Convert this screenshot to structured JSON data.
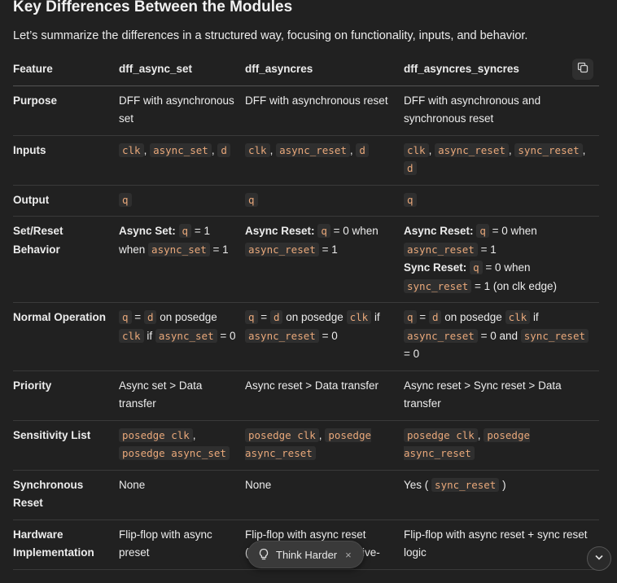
{
  "heading": "Key Differences Between the Modules",
  "intro": "Let’s summarize the differences in a structured way, focusing on functionality, inputs, and behavior.",
  "table": {
    "headers": [
      "Feature",
      "dff_async_set",
      "dff_asyncres",
      "dff_asyncres_syncres"
    ],
    "rows": [
      {
        "feature": "Purpose",
        "cells": [
          "DFF with asynchronous set",
          "DFF with asynchronous reset",
          "DFF with asynchronous and synchronous reset"
        ]
      },
      {
        "feature": "Inputs",
        "cells": [
          {
            "codes": [
              "clk",
              "async_set",
              "d"
            ]
          },
          {
            "codes": [
              "clk",
              "async_reset",
              "d"
            ]
          },
          {
            "codes": [
              "clk",
              "async_reset",
              "sync_reset",
              "d"
            ]
          }
        ]
      },
      {
        "feature": "Output",
        "cells": [
          "q",
          "q",
          "q"
        ]
      },
      {
        "feature": "Set/Reset Behavior",
        "cells": [
          {
            "label": "Async Set:",
            "q": "q",
            "eq": "= 1 when",
            "sig": "async_set",
            "tail": "= 1"
          },
          {
            "label": "Async Reset:",
            "q": "q",
            "eq": "= 0 when",
            "sig": "async_reset",
            "tail": "= 1"
          },
          {
            "label": "Async Reset:",
            "q": "q",
            "eq": "= 0 when",
            "sig": "async_reset",
            "tail": "= 1",
            "label2": "Sync Reset:",
            "q2": "q",
            "eq2": "= 0 when",
            "sig2": "sync_reset",
            "tail2": "= 1 (on clk edge)"
          }
        ]
      },
      {
        "feature": "Normal Operation",
        "cells": [
          {
            "q": "q",
            "eq": "=",
            "d": "d",
            "mid": "on posedge",
            "clk": "clk",
            "if": "if",
            "sig": "async_set",
            "tail": "= 0"
          },
          {
            "q": "q",
            "eq": "=",
            "d": "d",
            "mid": "on posedge",
            "clk": "clk",
            "if": "if",
            "sig": "async_reset",
            "tail": "= 0"
          },
          {
            "q": "q",
            "eq": "=",
            "d": "d",
            "mid": "on posedge",
            "clk": "clk",
            "if": "if",
            "sig": "async_reset",
            "and": "= 0 and",
            "sig2": "sync_reset",
            "tail": "= 0"
          }
        ]
      },
      {
        "feature": "Priority",
        "cells": [
          "Async set > Data transfer",
          "Async reset > Data transfer",
          "Async reset > Sync reset > Data transfer"
        ]
      },
      {
        "feature": "Sensitivity List",
        "cells": [
          {
            "a": "posedge clk",
            "b": "posedge async_set"
          },
          {
            "a": "posedge clk",
            "b": "posedge async_reset"
          },
          {
            "a": "posedge clk",
            "b": "posedge async_reset"
          }
        ]
      },
      {
        "feature": "Synchronous Reset",
        "cells": [
          "None",
          "None",
          {
            "pre": "Yes (",
            "code": "sync_reset",
            "post": ")"
          }
        ]
      },
      {
        "feature": "Hardware Implementation",
        "cells": [
          "Flip-flop with async preset",
          "Flip-flop with async reset (inverter in netlist for active-",
          "Flip-flop with async reset + sync reset logic"
        ]
      }
    ]
  },
  "think_pill": {
    "label": "Think Harder",
    "close": "×"
  },
  "icons": {
    "copy": "copy-icon",
    "bulb": "lightbulb-icon",
    "scroll": "chevron-down-icon"
  }
}
